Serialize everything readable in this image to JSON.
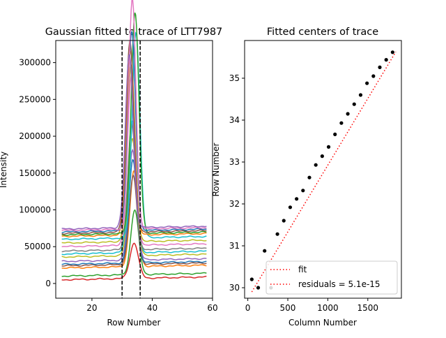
{
  "chart_data": [
    {
      "type": "line",
      "title": "Gaussian fitted to trace of LTT7987",
      "xlabel": "Row Number",
      "ylabel": "Intensity",
      "xlim": [
        8,
        60
      ],
      "ylim": [
        -20000,
        330000
      ],
      "xticks": [
        20,
        40,
        60
      ],
      "yticks": [
        0,
        50000,
        100000,
        150000,
        200000,
        250000,
        300000
      ],
      "ytick_labels": [
        "0",
        "50000",
        "100000",
        "150000",
        "200000",
        "250000",
        "300000"
      ],
      "grid": false,
      "vlines": [
        30,
        36
      ],
      "vline_style": "dashed",
      "x_range": [
        10,
        58
      ],
      "series": [
        {
          "color": "#d62728",
          "baseline": 5000,
          "peak": 48000,
          "center": 34.0,
          "sigma": 1.4
        },
        {
          "color": "#2ca02c",
          "baseline": 10000,
          "peak": 88000,
          "center": 34.2,
          "sigma": 1.3
        },
        {
          "color": "#ff7f0e",
          "baseline": 21000,
          "peak": 130000,
          "center": 33.9,
          "sigma": 1.3
        },
        {
          "color": "#8c564b",
          "baseline": 24000,
          "peak": 120000,
          "center": 33.7,
          "sigma": 1.3
        },
        {
          "color": "#1f77b4",
          "baseline": 26000,
          "peak": 140000,
          "center": 33.6,
          "sigma": 1.3
        },
        {
          "color": "#9467bd",
          "baseline": 30000,
          "peak": 150000,
          "center": 33.5,
          "sigma": 1.3
        },
        {
          "color": "#bcbd22",
          "baseline": 36000,
          "peak": 160000,
          "center": 33.4,
          "sigma": 1.3
        },
        {
          "color": "#17becf",
          "baseline": 40000,
          "peak": 180000,
          "center": 33.3,
          "sigma": 1.3
        },
        {
          "color": "#7f7f7f",
          "baseline": 44000,
          "peak": 170000,
          "center": 33.2,
          "sigma": 1.3
        },
        {
          "color": "#e377c2",
          "baseline": 50000,
          "peak": 230000,
          "center": 33.1,
          "sigma": 1.3
        },
        {
          "color": "#bcbd22",
          "baseline": 55000,
          "peak": 240000,
          "center": 33.0,
          "sigma": 1.3
        },
        {
          "color": "#17becf",
          "baseline": 60000,
          "peak": 280000,
          "center": 34.6,
          "sigma": 1.3
        },
        {
          "color": "#ff7f0e",
          "baseline": 64000,
          "peak": 250000,
          "center": 32.8,
          "sigma": 1.3
        },
        {
          "color": "#2ca02c",
          "baseline": 66000,
          "peak": 300000,
          "center": 34.3,
          "sigma": 1.3
        },
        {
          "color": "#8c564b",
          "baseline": 68000,
          "peak": 260000,
          "center": 32.6,
          "sigma": 1.3
        },
        {
          "color": "#1f77b4",
          "baseline": 70000,
          "peak": 270000,
          "center": 33.2,
          "sigma": 1.3
        },
        {
          "color": "#e377c2",
          "baseline": 72000,
          "peak": 313000,
          "center": 33.4,
          "sigma": 1.2
        },
        {
          "color": "#9467bd",
          "baseline": 74000,
          "peak": 235000,
          "center": 32.4,
          "sigma": 1.3
        }
      ]
    },
    {
      "type": "scatter",
      "title": "Fitted centers of trace",
      "xlabel": "Column Number",
      "ylabel": "Row Number",
      "xlim": [
        -40,
        1920
      ],
      "ylim": [
        29.75,
        35.9
      ],
      "xticks": [
        0,
        500,
        1000,
        1500
      ],
      "yticks": [
        30,
        31,
        32,
        33,
        34,
        35
      ],
      "grid": false,
      "points": {
        "x": [
          50,
          130,
          210,
          290,
          370,
          450,
          530,
          610,
          690,
          770,
          850,
          930,
          1010,
          1090,
          1170,
          1250,
          1330,
          1410,
          1490,
          1570,
          1650,
          1730,
          1810
        ],
        "y": [
          30.2,
          30.0,
          30.88,
          30.0,
          31.28,
          31.6,
          31.92,
          32.12,
          32.32,
          32.63,
          32.93,
          33.14,
          33.36,
          33.66,
          33.93,
          34.15,
          34.38,
          34.6,
          34.88,
          35.05,
          35.26,
          35.44,
          35.62
        ]
      },
      "fit_line": {
        "x": [
          50,
          1850
        ],
        "y": [
          29.9,
          35.63
        ]
      },
      "legend": {
        "position": "lower-right",
        "entries": [
          "fit",
          "residuals = 5.1e-15"
        ]
      }
    }
  ]
}
